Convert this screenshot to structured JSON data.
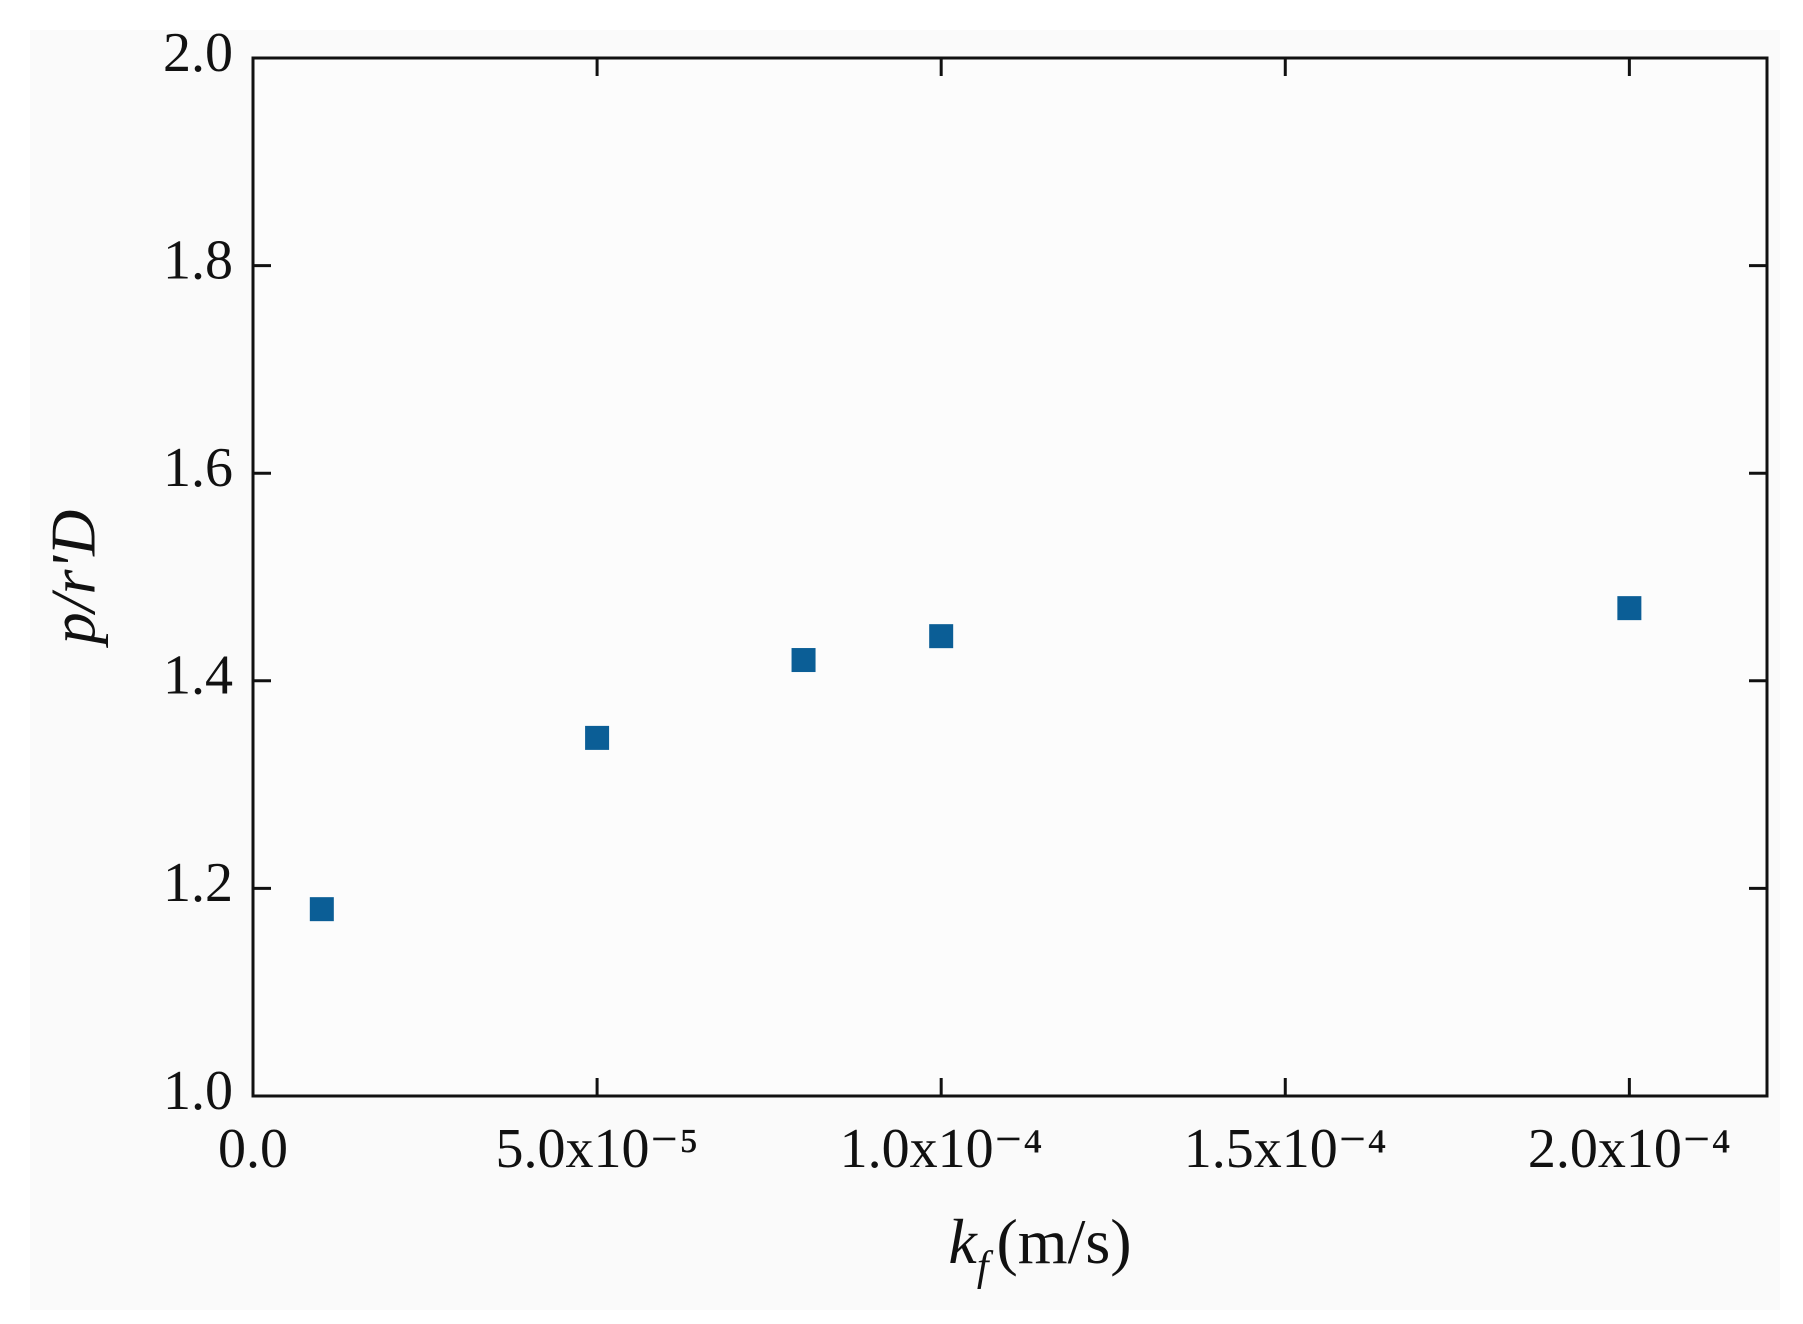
{
  "chart_data": {
    "type": "scatter",
    "x_label": [
      "k",
      "f",
      "(m/s)"
    ],
    "y_label": "p/r'D",
    "series": [
      {
        "color": "#0b5e96",
        "x": [
          1e-05,
          5e-05,
          8e-05,
          0.0001,
          0.0002
        ],
        "values": [
          1.18,
          1.345,
          1.42,
          1.443,
          1.47
        ]
      }
    ],
    "xlim": [
      0,
      0.00022
    ],
    "xticks": [
      {
        "value": 0,
        "label": "0.0"
      },
      {
        "value": 5e-05,
        "label": "5.0x10⁻⁵"
      },
      {
        "value": 0.0001,
        "label": "1.0x10⁻⁴"
      },
      {
        "value": 0.00015,
        "label": "1.5x10⁻⁴"
      },
      {
        "value": 0.0002,
        "label": "2.0x10⁻⁴"
      }
    ],
    "ylim": [
      1.0,
      2.0
    ],
    "yticks": [
      {
        "value": 1.0,
        "label": "1.0"
      },
      1.2,
      1.4,
      1.6,
      1.8,
      {
        "value": 2.0,
        "label": "2.0"
      }
    ]
  }
}
